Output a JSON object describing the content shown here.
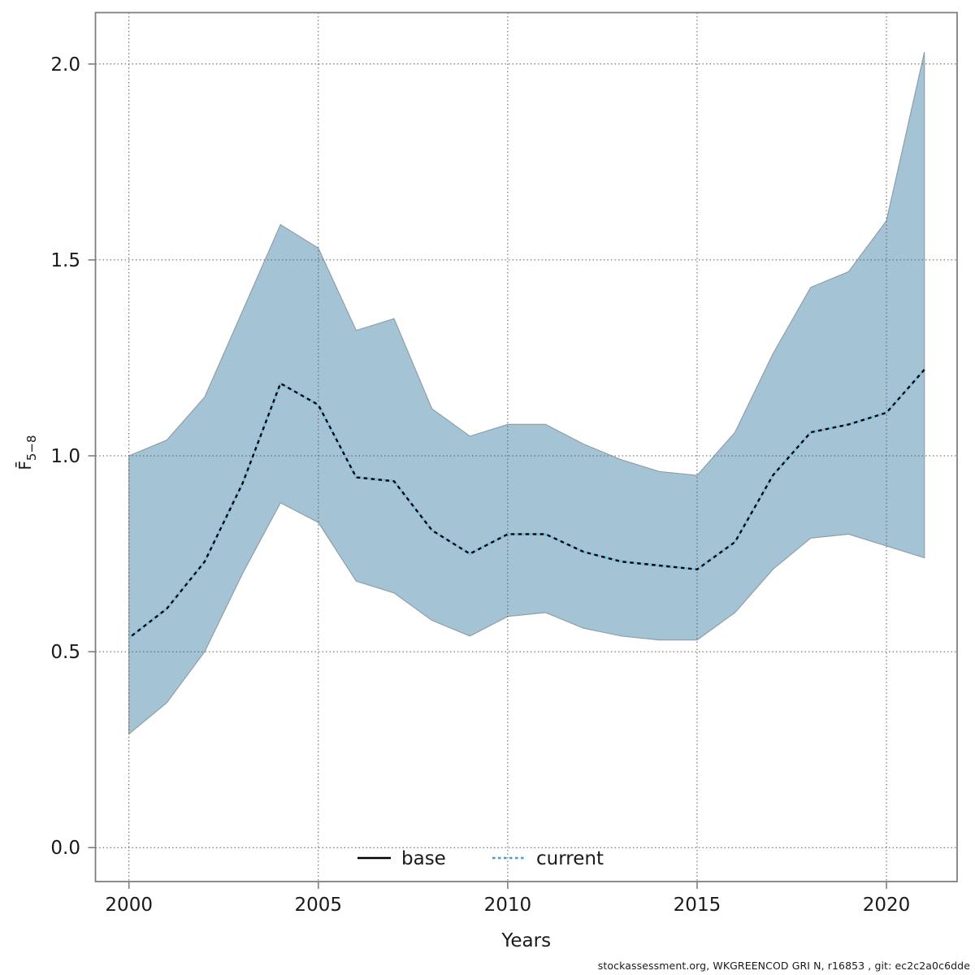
{
  "chart_data": {
    "type": "line",
    "title": "",
    "xlabel": "Years",
    "ylabel_parts": {
      "main": "F̄",
      "sub": "5−8"
    },
    "x": [
      2000,
      2001,
      2002,
      2003,
      2004,
      2005,
      2006,
      2007,
      2008,
      2009,
      2010,
      2011,
      2012,
      2013,
      2014,
      2015,
      2016,
      2017,
      2018,
      2019,
      2020,
      2021
    ],
    "series": [
      {
        "name": "base",
        "style": "solid",
        "color": "#000000",
        "values": [
          0.535,
          0.61,
          0.73,
          0.93,
          1.185,
          1.13,
          0.945,
          0.935,
          0.81,
          0.75,
          0.8,
          0.8,
          0.755,
          0.73,
          0.72,
          0.71,
          0.78,
          0.95,
          1.06,
          1.08,
          1.11,
          1.22
        ]
      },
      {
        "name": "current",
        "style": "dotted",
        "color": "#4f99cb",
        "values": [
          0.535,
          0.61,
          0.73,
          0.93,
          1.185,
          1.13,
          0.945,
          0.935,
          0.81,
          0.75,
          0.8,
          0.8,
          0.755,
          0.73,
          0.72,
          0.71,
          0.78,
          0.95,
          1.06,
          1.08,
          1.11,
          1.22
        ]
      }
    ],
    "band": {
      "name": "confidence-band",
      "fill": "#a4c4d6",
      "edge": "#8f9fa8",
      "lower": [
        0.29,
        0.37,
        0.5,
        0.7,
        0.88,
        0.83,
        0.68,
        0.65,
        0.58,
        0.54,
        0.59,
        0.6,
        0.56,
        0.54,
        0.53,
        0.53,
        0.6,
        0.71,
        0.79,
        0.8,
        0.77,
        0.74
      ],
      "upper": [
        1.0,
        1.04,
        1.15,
        1.37,
        1.59,
        1.53,
        1.32,
        1.35,
        1.12,
        1.05,
        1.08,
        1.08,
        1.03,
        0.99,
        0.96,
        0.95,
        1.06,
        1.26,
        1.43,
        1.47,
        1.6,
        2.03
      ]
    },
    "xticks": [
      2000,
      2005,
      2010,
      2015,
      2020
    ],
    "yticks": [
      0.0,
      0.5,
      1.0,
      1.5,
      2.0
    ],
    "ytick_labels": [
      "0.0",
      "0.5",
      "1.0",
      "1.5",
      "2.0"
    ],
    "xlim": [
      1999.1,
      2021.85
    ],
    "ylim": [
      -0.09,
      2.13
    ],
    "grid": "dotted",
    "legend_position": "bottom-center",
    "legend": [
      {
        "label": "base",
        "style": "solid",
        "color": "#000000"
      },
      {
        "label": "current",
        "style": "dotted",
        "color": "#4f99cb"
      }
    ],
    "footer": "stockassessment.org, WKGREENCOD  GRI  N, r16853 , git: ec2c2a0c6dde",
    "colors": {
      "frame": "#7f7f7f",
      "grid": "#595959",
      "text": "#1a1a1a",
      "band_fill": "#a4c4d6",
      "band_edge": "#8f9fa8"
    }
  }
}
